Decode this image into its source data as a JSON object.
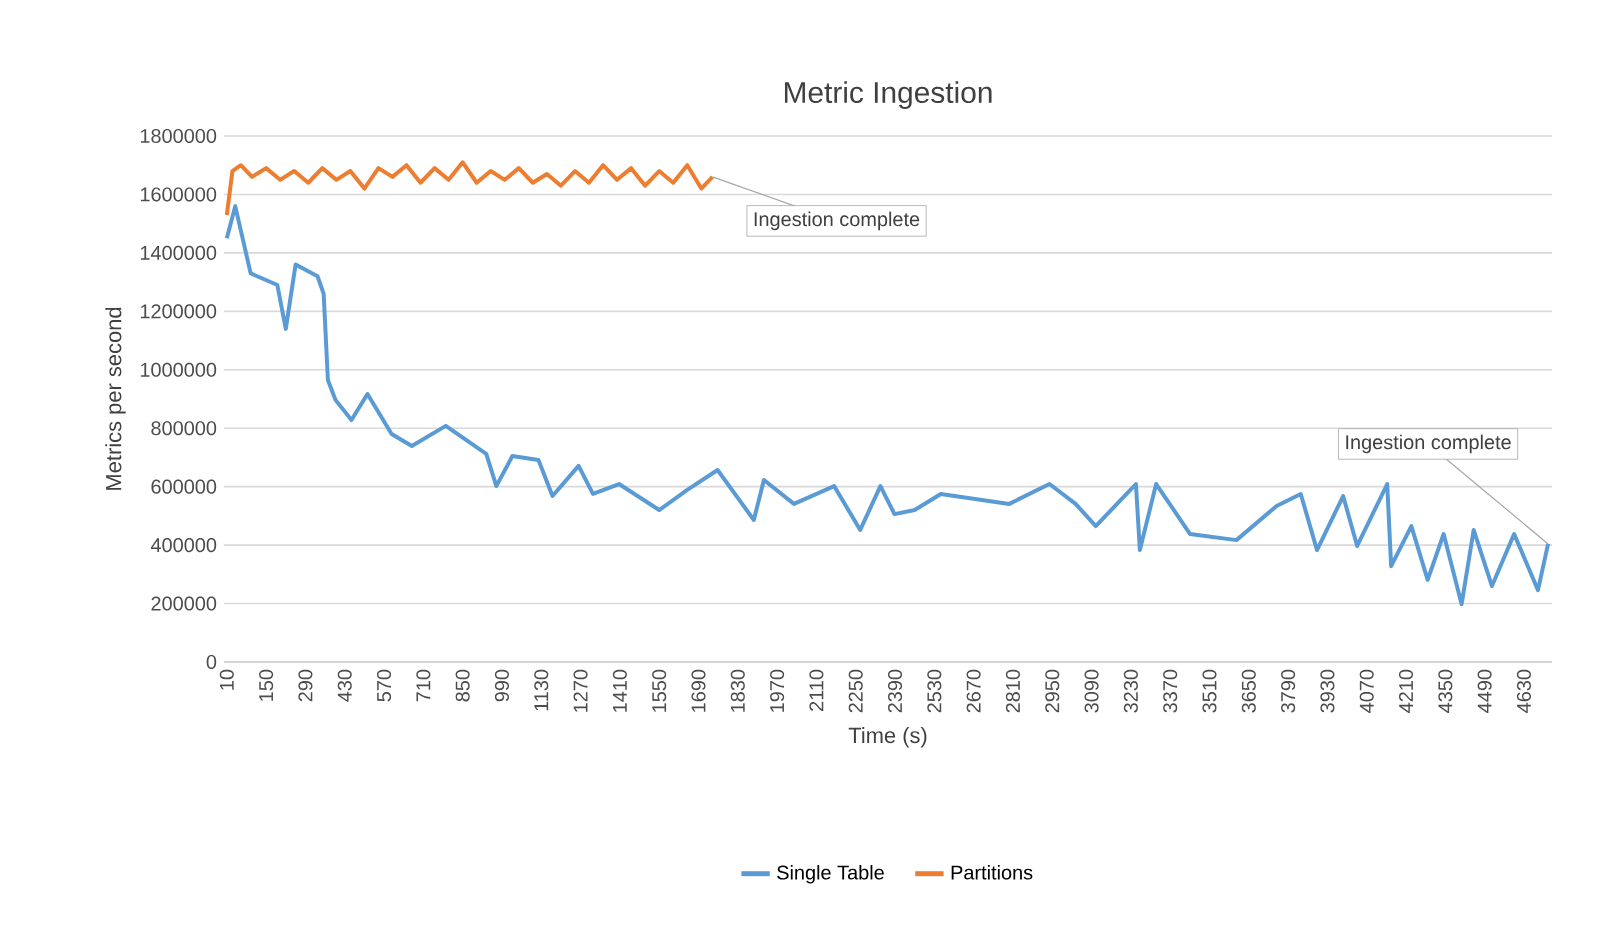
{
  "chart_data": {
    "type": "line",
    "title": "Metric Ingestion",
    "xlabel": "Time (s)",
    "ylabel": "Metrics per second",
    "xlim": [
      0,
      4730
    ],
    "xticks": [
      10,
      150,
      290,
      430,
      570,
      710,
      850,
      990,
      1130,
      1270,
      1410,
      1550,
      1690,
      1830,
      1970,
      2110,
      2250,
      2390,
      2530,
      2670,
      2810,
      2950,
      3090,
      3230,
      3370,
      3510,
      3650,
      3790,
      3930,
      4070,
      4210,
      4350,
      4490,
      4630
    ],
    "ylim": [
      0,
      1800000
    ],
    "yticks": [
      0,
      200000,
      400000,
      600000,
      800000,
      1000000,
      1200000,
      1400000,
      1600000,
      1800000
    ],
    "grid": "y",
    "legend": "bottom",
    "series": [
      {
        "name": "Single Table",
        "color": "#5b9bd5",
        "x": [
          10,
          40,
          95,
          190,
          220,
          255,
          333,
          355,
          370,
          397,
          454,
          511,
          597,
          669,
          790,
          934,
          970,
          1027,
          1120,
          1170,
          1263,
          1314,
          1407,
          1550,
          1650,
          1758,
          1887,
          1923,
          2030,
          2173,
          2266,
          2338,
          2388,
          2460,
          2553,
          2797,
          2940,
          3033,
          3105,
          3248,
          3262,
          3320,
          3441,
          3606,
          3749,
          3835,
          3893,
          3986,
          4036,
          4143,
          4157,
          4229,
          4287,
          4344,
          4408,
          4451,
          4516,
          4595,
          4680,
          4716
        ],
        "values": [
          1450000,
          1560000,
          1330000,
          1290000,
          1140000,
          1360000,
          1320000,
          1260000,
          965000,
          897000,
          828000,
          917000,
          780000,
          739000,
          808000,
          712000,
          602000,
          705000,
          691000,
          568000,
          671000,
          575000,
          609000,
          520000,
          589000,
          657000,
          486000,
          623000,
          541000,
          602000,
          452000,
          602000,
          506000,
          520000,
          575000,
          541000,
          609000,
          541000,
          465000,
          609000,
          383000,
          609000,
          438000,
          417000,
          534000,
          575000,
          383000,
          568000,
          397000,
          609000,
          328000,
          465000,
          281000,
          438000,
          198000,
          452000,
          260000,
          438000,
          246000,
          404000
        ]
      },
      {
        "name": "Partitions",
        "color": "#ed7d31",
        "x": [
          10,
          30,
          60,
          100,
          150,
          200,
          250,
          300,
          350,
          400,
          450,
          500,
          550,
          600,
          650,
          700,
          750,
          800,
          850,
          900,
          950,
          1000,
          1050,
          1100,
          1150,
          1200,
          1250,
          1300,
          1350,
          1400,
          1450,
          1500,
          1550,
          1600,
          1650,
          1700,
          1740
        ],
        "values": [
          1530000,
          1680000,
          1700000,
          1660000,
          1690000,
          1650000,
          1680000,
          1640000,
          1690000,
          1650000,
          1680000,
          1620000,
          1690000,
          1660000,
          1700000,
          1640000,
          1690000,
          1650000,
          1710000,
          1640000,
          1680000,
          1650000,
          1690000,
          1640000,
          1670000,
          1630000,
          1680000,
          1640000,
          1700000,
          1650000,
          1690000,
          1630000,
          1680000,
          1640000,
          1700000,
          1620000,
          1660000
        ]
      }
    ],
    "annotations": [
      {
        "text": "Ingestion complete",
        "x": 1740,
        "y": 1660000
      },
      {
        "text": "Ingestion complete",
        "x": 4716,
        "y": 404000
      }
    ]
  }
}
